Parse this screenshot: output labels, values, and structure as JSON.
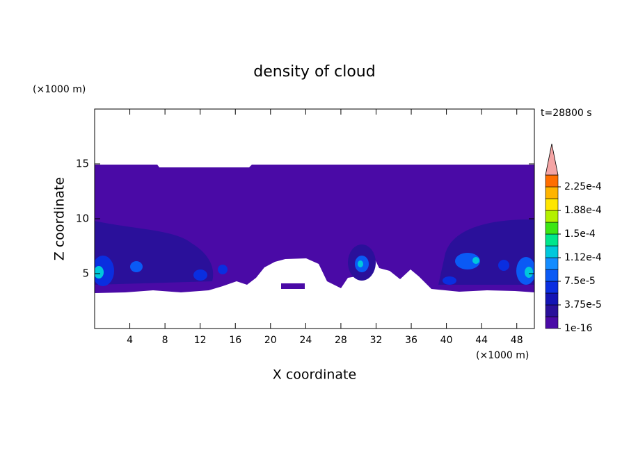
{
  "chart_data": {
    "type": "contour",
    "title": "density of cloud",
    "xlabel": "X coordinate",
    "ylabel": "Z coordinate",
    "xunit": "(×1000 m)",
    "yunit": "(×1000 m)",
    "annotation": "t=28800 s",
    "xlim": [
      0,
      50
    ],
    "xticks": [
      4,
      8,
      12,
      16,
      20,
      24,
      28,
      32,
      36,
      40,
      44,
      48
    ],
    "ylim": [
      0,
      20
    ],
    "yticks": [
      5,
      10,
      15
    ],
    "colorbar": {
      "levels": [
        1e-16,
        1.875e-05,
        3.75e-05,
        5.625e-05,
        7.5e-05,
        9.375e-05,
        0.0001125,
        0.00013125,
        0.00015,
        0.00016875,
        0.0001875,
        0.00020625,
        0.000225,
        0.00024375
      ],
      "colors": [
        "#4a0aa6",
        "#2a109a",
        "#1414b4",
        "#0a2ee0",
        "#0a5af5",
        "#148cff",
        "#00c8dc",
        "#00e68c",
        "#3ce614",
        "#b4f000",
        "#ffe600",
        "#ffb400",
        "#ff6e00"
      ],
      "extend_color": "#f4a4a4",
      "ticks": [
        {
          "value": 1e-16,
          "label": "1e-16"
        },
        {
          "value": 3.75e-05,
          "label": "3.75e-5"
        },
        {
          "value": 7.5e-05,
          "label": "7.5e-5"
        },
        {
          "value": 0.0001125,
          "label": "1.12e-4"
        },
        {
          "value": 0.00015,
          "label": "1.5e-4"
        },
        {
          "value": 0.0001875,
          "label": "1.88e-4"
        },
        {
          "value": 0.000225,
          "label": "2.25e-4"
        }
      ]
    }
  }
}
